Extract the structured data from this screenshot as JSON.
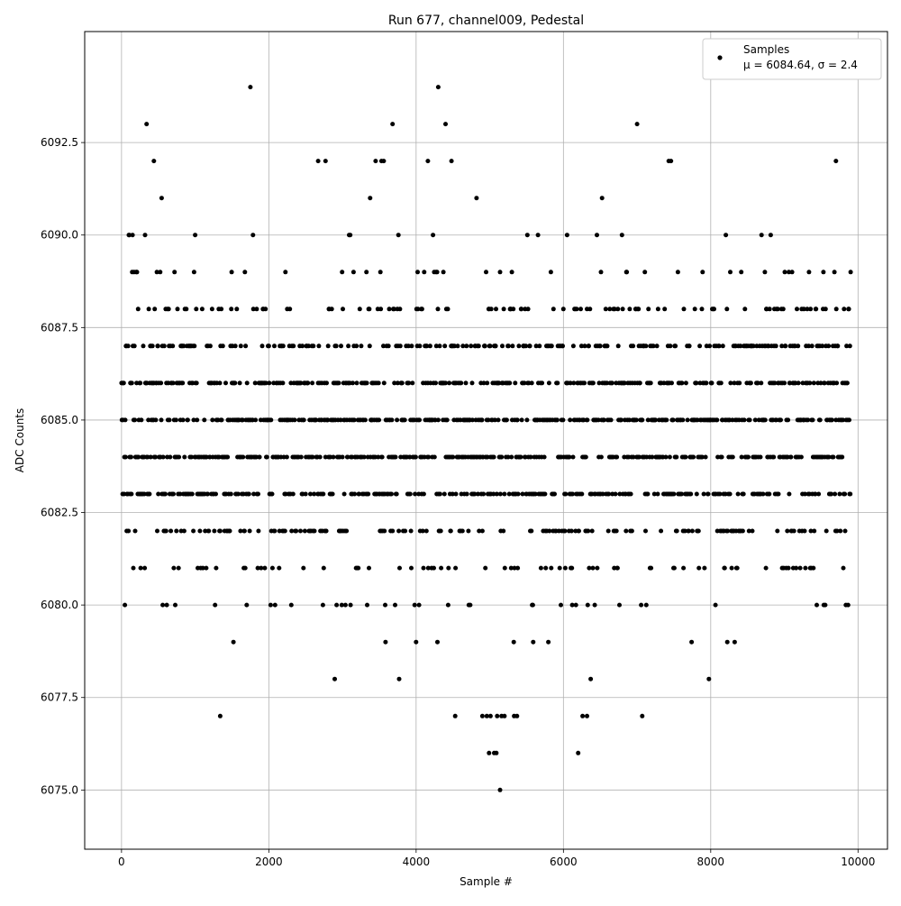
{
  "chart_data": {
    "type": "scatter",
    "title": "Run 677, channel009, Pedestal",
    "xlabel": "Sample #",
    "ylabel": "ADC Counts",
    "xlim": [
      -500,
      10400
    ],
    "ylim": [
      6073.4,
      6095.5
    ],
    "xticks": [
      0,
      2000,
      4000,
      6000,
      8000,
      10000
    ],
    "xtick_labels": [
      "0",
      "2000",
      "4000",
      "6000",
      "8000",
      "10000"
    ],
    "yticks": [
      6075.0,
      6077.5,
      6080.0,
      6082.5,
      6085.0,
      6087.5,
      6090.0,
      6092.5
    ],
    "ytick_labels": [
      "6075.0",
      "6077.5",
      "6080.0",
      "6082.5",
      "6085.0",
      "6087.5",
      "6090.0",
      "6092.5"
    ],
    "grid": true,
    "legend_position": "top-right",
    "legend_label": "Samples",
    "legend_stats": "μ = 6084.64, σ = 2.4",
    "mean": 6084.64,
    "sigma": 2.4,
    "n_samples": 9900,
    "series": [
      {
        "name": "Samples",
        "color": "#000000",
        "marker": "dot",
        "x_range": [
          0,
          9900
        ],
        "value_levels": [
          6075,
          6076,
          6077,
          6078,
          6079,
          6080,
          6081,
          6082,
          6083,
          6084,
          6085,
          6086,
          6087,
          6088,
          6089,
          6090,
          6091,
          6092,
          6093,
          6094
        ],
        "outliers": [
          {
            "x": 1750,
            "y": 6094
          },
          {
            "x": 4300,
            "y": 6094
          },
          {
            "x": 340,
            "y": 6093
          },
          {
            "x": 3680,
            "y": 6093
          },
          {
            "x": 4400,
            "y": 6093
          },
          {
            "x": 7000,
            "y": 6093
          },
          {
            "x": 440,
            "y": 6092
          },
          {
            "x": 2670,
            "y": 6092
          },
          {
            "x": 2770,
            "y": 6092
          },
          {
            "x": 3450,
            "y": 6092
          },
          {
            "x": 3530,
            "y": 6092
          },
          {
            "x": 3560,
            "y": 6092
          },
          {
            "x": 4160,
            "y": 6092
          },
          {
            "x": 4480,
            "y": 6092
          },
          {
            "x": 7430,
            "y": 6092
          },
          {
            "x": 7460,
            "y": 6092
          },
          {
            "x": 9700,
            "y": 6092
          },
          {
            "x": 1340,
            "y": 6077
          },
          {
            "x": 4530,
            "y": 6077
          },
          {
            "x": 4900,
            "y": 6077
          },
          {
            "x": 4960,
            "y": 6077
          },
          {
            "x": 5010,
            "y": 6077
          },
          {
            "x": 5100,
            "y": 6077
          },
          {
            "x": 5160,
            "y": 6077
          },
          {
            "x": 5200,
            "y": 6077
          },
          {
            "x": 5330,
            "y": 6077
          },
          {
            "x": 5370,
            "y": 6077
          },
          {
            "x": 6260,
            "y": 6077
          },
          {
            "x": 6320,
            "y": 6077
          },
          {
            "x": 7070,
            "y": 6077
          },
          {
            "x": 4990,
            "y": 6076
          },
          {
            "x": 5060,
            "y": 6076
          },
          {
            "x": 5090,
            "y": 6076
          },
          {
            "x": 6200,
            "y": 6076
          },
          {
            "x": 5140,
            "y": 6075
          }
        ]
      }
    ]
  }
}
